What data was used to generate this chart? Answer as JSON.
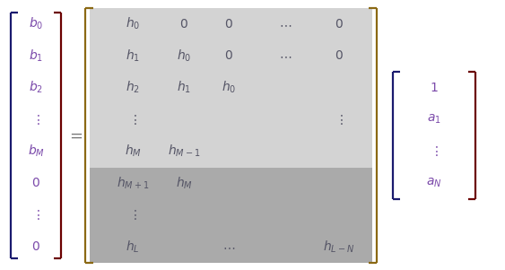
{
  "bg_color": "#ffffff",
  "bracket_color_lv": "#6b0000",
  "bracket_color_mat": "#8b5a00",
  "bracket_color_rv": "#6b0000",
  "text_color": "#555566",
  "light_gray": "#d3d3d3",
  "dark_gray": "#aaaaaa",
  "figw": 5.63,
  "figh": 3.01,
  "dpi": 100
}
